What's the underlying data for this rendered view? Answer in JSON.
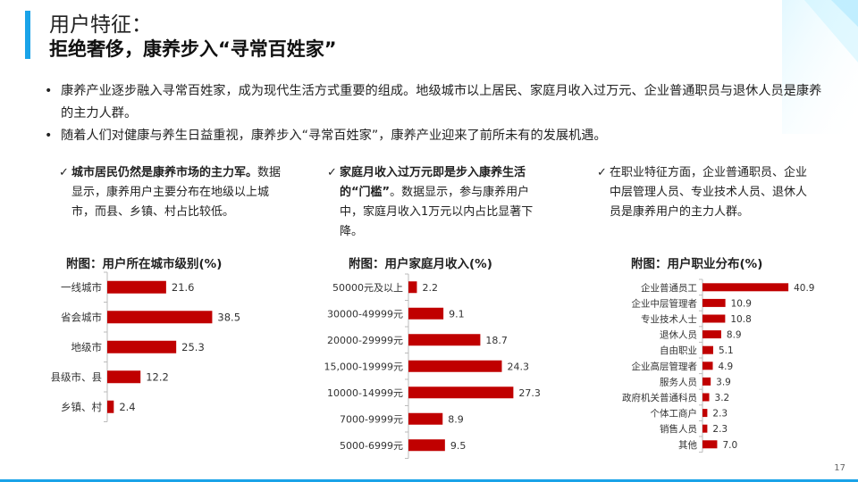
{
  "header": {
    "title_line1": "用户特征：",
    "title_line2": "拒绝奢侈，康养步入“寻常百姓家”"
  },
  "bullets": [
    "康养产业逐步融入寻常百姓家，成为现代生活方式重要的组成。地级城市以上居民、家庭月收入过万元、企业普通职员与退休人员是康养的主力人群。",
    "随着人们对健康与养生日益重视，康养步入“寻常百姓家”，康养产业迎来了前所未有的发展机遇。"
  ],
  "columns": [
    {
      "check": "✓",
      "bold": "城市居民仍然是康养市场的主力军。",
      "text": "数据显示，康养用户主要分布在地级以上城市，而县、乡镇、村占比较低。"
    },
    {
      "check": "✓",
      "bold": "家庭月收入过万元即是步入康养生活的“门槛”",
      "text": "。数据显示，参与康养用户中，家庭月收入1万元以内占比显著下降。"
    },
    {
      "check": "✓",
      "bold": "",
      "text": "在职业特征方面，企业普通职员、企业中层管理人员、专业技术人员、退休人员是康养用户的主力人群。"
    }
  ],
  "chart_titles": [
    "附图：用户所在城市级别(%)",
    "附图：用户家庭月收入(%)",
    "附图：用户职业分布(%)"
  ],
  "chart_data": [
    {
      "type": "bar",
      "orientation": "horizontal",
      "title": "附图：用户所在城市级别(%)",
      "categories": [
        "一线城市",
        "省会城市",
        "地级市",
        "县级市、县",
        "乡镇、村"
      ],
      "values": [
        21.6,
        38.5,
        25.3,
        12.2,
        2.4
      ],
      "color": "#c00000"
    },
    {
      "type": "bar",
      "orientation": "horizontal",
      "title": "附图：用户家庭月收入(%)",
      "categories": [
        "50000元及以上",
        "30000-49999元",
        "20000-29999元",
        "15,000-19999元",
        "10000-14999元",
        "7000-9999元",
        "5000-6999元"
      ],
      "values": [
        2.2,
        9.1,
        18.7,
        24.3,
        27.3,
        8.9,
        9.5
      ],
      "color": "#c00000"
    },
    {
      "type": "bar",
      "orientation": "horizontal",
      "title": "附图：用户职业分布(%)",
      "categories": [
        "企业普通员工",
        "企业中层管理者",
        "专业技术人士",
        "退休人员",
        "自由职业",
        "企业高层管理者",
        "服务人员",
        "政府机关普通科员",
        "个体工商户",
        "销售人员",
        "其他"
      ],
      "values": [
        40.9,
        10.9,
        10.8,
        8.9,
        5.1,
        4.9,
        3.9,
        3.2,
        2.3,
        2.3,
        7.0
      ],
      "value_labels": [
        "40.9",
        "10.9",
        "10.8",
        "8.9",
        "5.1",
        "4.9",
        "3.9",
        "3.2",
        "2.3",
        "2.3",
        "7.0"
      ],
      "color": "#c00000"
    }
  ],
  "page_number": "17",
  "colors": {
    "accent": "#1aa3e8",
    "bar": "#c00000"
  }
}
